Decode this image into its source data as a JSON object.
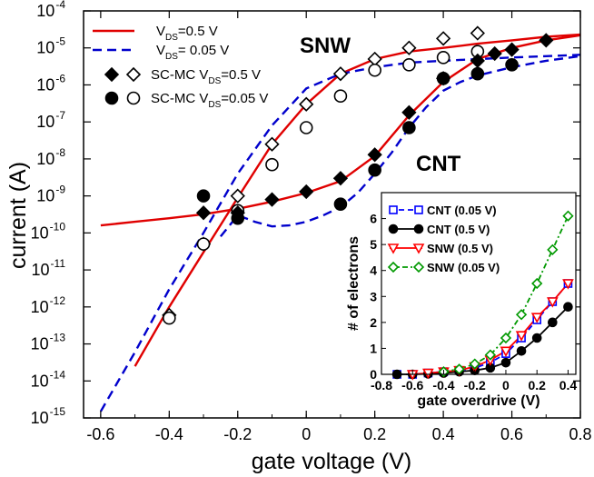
{
  "chart_data": [
    {
      "type": "line",
      "title": "",
      "xlabel": "gate voltage (V)",
      "ylabel": "current (A)",
      "xlim": [
        -0.65,
        0.8
      ],
      "ylim_exponent": [
        -15,
        -4
      ],
      "y_scale": "log",
      "x_ticks": [
        "-0.6",
        "-0.4",
        "-0.2",
        "0",
        "0.2",
        "0.4",
        "0.6",
        "0.8"
      ],
      "y_tick_exponents": [
        -15,
        -14,
        -13,
        -12,
        -11,
        -10,
        -9,
        -8,
        -7,
        -6,
        -5,
        -4
      ],
      "y_tick_base": "10",
      "annotations": [
        "SNW",
        "CNT"
      ],
      "legend": {
        "placement": "top-left",
        "entries": [
          {
            "key": "snw_vds05",
            "label_main": "V",
            "label_sub": "DS",
            "label_rest": "=0.5 V"
          },
          {
            "key": "snw_vds005",
            "label_main": "V",
            "label_sub": "DS",
            "label_rest": "= 0.05 V"
          },
          {
            "key": "mc05",
            "label_main": "SC-MC V",
            "label_sub": "DS",
            "label_rest": "=0.5 V"
          },
          {
            "key": "mc005",
            "label_main": "SC-MC V",
            "label_sub": "DS",
            "label_rest": "=0.05 V"
          }
        ]
      },
      "series": [
        {
          "key": "snw_vds05",
          "style": "solid",
          "color": "#e00000",
          "x": [
            -0.5,
            -0.4,
            -0.3,
            -0.2,
            -0.1,
            0.0,
            0.1,
            0.2,
            0.3,
            0.4,
            0.5,
            0.6,
            0.7,
            0.8
          ],
          "y": [
            2.5e-14,
            1e-12,
            3e-11,
            9e-10,
            2.5e-08,
            3e-07,
            2e-06,
            5e-06,
            8e-06,
            1e-05,
            1.3e-05,
            1.6e-05,
            2e-05,
            2.3e-05
          ]
        },
        {
          "key": "snw_vds005",
          "style": "dashed",
          "color": "#0000cc",
          "x": [
            -0.6,
            -0.5,
            -0.4,
            -0.3,
            -0.2,
            -0.1,
            0.0,
            0.1,
            0.2,
            0.3,
            0.4,
            0.5,
            0.6,
            0.7,
            0.8
          ],
          "y": [
            1.5e-15,
            6e-14,
            3e-12,
            1e-10,
            4e-09,
            8e-08,
            8e-07,
            2e-06,
            3e-06,
            4e-06,
            4.5e-06,
            5e-06,
            5.5e-06,
            6e-06,
            6.5e-06
          ]
        },
        {
          "key": "cnt_vds05",
          "style": "solid",
          "color": "#e00000",
          "x": [
            -0.6,
            -0.5,
            -0.4,
            -0.3,
            -0.2,
            -0.1,
            0.0,
            0.1,
            0.2,
            0.3,
            0.4,
            0.5,
            0.6,
            0.7,
            0.8
          ],
          "y": [
            1.6e-10,
            2e-10,
            2.5e-10,
            3.2e-10,
            4.5e-10,
            7e-10,
            1.2e-09,
            2.5e-09,
            1.2e-08,
            1.5e-07,
            1.2e-06,
            5e-06,
            1e-05,
            1.6e-05,
            2.2e-05
          ]
        },
        {
          "key": "cnt_vds005",
          "style": "dashed",
          "color": "#0000cc",
          "x": [
            -0.25,
            -0.2,
            -0.15,
            -0.1,
            -0.05,
            0.0,
            0.05,
            0.1,
            0.15,
            0.2,
            0.25,
            0.3,
            0.35,
            0.4,
            0.45,
            0.5,
            0.6,
            0.7,
            0.8
          ],
          "y": [
            8e-11,
            3e-10,
            2e-10,
            1.5e-10,
            1.6e-10,
            2e-10,
            3e-10,
            5e-10,
            1.2e-09,
            4e-09,
            1.5e-08,
            7e-08,
            2.5e-07,
            7e-07,
            1.2e-06,
            1.8e-06,
            3e-06,
            4.5e-06,
            6e-06
          ]
        },
        {
          "key": "mc_snw05",
          "marker": "diamond-open",
          "x": [
            -0.4,
            -0.3,
            -0.2,
            -0.1,
            0.0,
            0.1,
            0.2,
            0.3,
            0.4,
            0.5
          ],
          "y": [
            6e-13,
            5e-11,
            1e-09,
            2.5e-08,
            3e-07,
            2e-06,
            5e-06,
            1e-05,
            1.8e-05,
            2.5e-05
          ]
        },
        {
          "key": "mc_snw005",
          "marker": "circle-open",
          "x": [
            -0.4,
            -0.3,
            -0.2,
            -0.1,
            0.0,
            0.1,
            0.2,
            0.3,
            0.4,
            0.5
          ],
          "y": [
            5e-13,
            5e-11,
            4e-10,
            7e-09,
            7e-08,
            5e-07,
            2.5e-06,
            3.5e-06,
            5.5e-06,
            8e-06
          ]
        },
        {
          "key": "mc_cnt05",
          "marker": "diamond-filled",
          "x": [
            -0.3,
            -0.2,
            -0.1,
            0.0,
            0.1,
            0.2,
            0.3,
            0.4,
            0.5,
            0.55,
            0.6,
            0.7
          ],
          "y": [
            3.5e-10,
            3.5e-10,
            8e-10,
            1.3e-09,
            3e-09,
            1.3e-08,
            1.8e-07,
            1.5e-06,
            4.5e-06,
            7e-06,
            9e-06,
            1.6e-05
          ]
        },
        {
          "key": "mc_cnt005",
          "marker": "circle-filled",
          "x": [
            -0.3,
            -0.2,
            0.1,
            0.2,
            0.3,
            0.4,
            0.5,
            0.6
          ],
          "y": [
            1e-09,
            2.5e-10,
            6e-10,
            5e-09,
            7e-08,
            1.5e-06,
            2e-06,
            3.5e-06
          ]
        }
      ]
    },
    {
      "type": "line",
      "title": "",
      "xlabel": "gate overdrive (V)",
      "ylabel": "# of electrons",
      "xlim": [
        -0.8,
        0.45
      ],
      "ylim": [
        0,
        7
      ],
      "x_ticks": [
        "-0.8",
        "-0.6",
        "-0.4",
        "-0.2",
        "0",
        "0.2",
        "0.4"
      ],
      "y_ticks": [
        "0",
        "1",
        "2",
        "3",
        "4",
        "5",
        "6"
      ],
      "legend": {
        "placement": "top-left",
        "entries": [
          {
            "key": "ins_cnt005",
            "label": "CNT (0.05 V)"
          },
          {
            "key": "ins_cnt05",
            "label": "CNT (0.5 V)"
          },
          {
            "key": "ins_snw05",
            "label": "SNW (0.5 V)"
          },
          {
            "key": "ins_snw005",
            "label": "SNW (0.05 V)"
          }
        ]
      },
      "series": [
        {
          "key": "ins_cnt005",
          "color": "#0000ff",
          "marker": "square-open",
          "style": "dashed",
          "x": [
            -0.7,
            -0.6,
            -0.5,
            -0.4,
            -0.3,
            -0.2,
            -0.1,
            0.0,
            0.1,
            0.2,
            0.3,
            0.4
          ],
          "y": [
            0.0,
            0.0,
            0.05,
            0.1,
            0.15,
            0.25,
            0.45,
            0.8,
            1.4,
            2.1,
            2.8,
            3.5
          ]
        },
        {
          "key": "ins_cnt05",
          "color": "#000000",
          "marker": "circle-filled",
          "style": "solid",
          "x": [
            -0.7,
            -0.6,
            -0.5,
            -0.4,
            -0.3,
            -0.2,
            -0.1,
            0.0,
            0.1,
            0.2,
            0.3,
            0.4
          ],
          "y": [
            0.0,
            0.0,
            0.02,
            0.05,
            0.1,
            0.15,
            0.25,
            0.45,
            0.9,
            1.4,
            2.0,
            2.6
          ]
        },
        {
          "key": "ins_snw05",
          "color": "#ff0000",
          "marker": "triangle-down-open",
          "style": "solid",
          "x": [
            -0.6,
            -0.5,
            -0.4,
            -0.3,
            -0.2,
            -0.1,
            0.0,
            0.1,
            0.2,
            0.3,
            0.4
          ],
          "y": [
            0.0,
            0.05,
            0.1,
            0.15,
            0.3,
            0.55,
            0.9,
            1.5,
            2.2,
            2.8,
            3.5
          ]
        },
        {
          "key": "ins_snw005",
          "color": "#009900",
          "marker": "diamond-open",
          "style": "dashdot",
          "x": [
            -0.4,
            -0.3,
            -0.2,
            -0.1,
            0.0,
            0.1,
            0.2,
            0.3,
            0.4
          ],
          "y": [
            0.1,
            0.2,
            0.4,
            0.75,
            1.4,
            2.3,
            3.5,
            4.8,
            6.1
          ]
        }
      ]
    }
  ]
}
